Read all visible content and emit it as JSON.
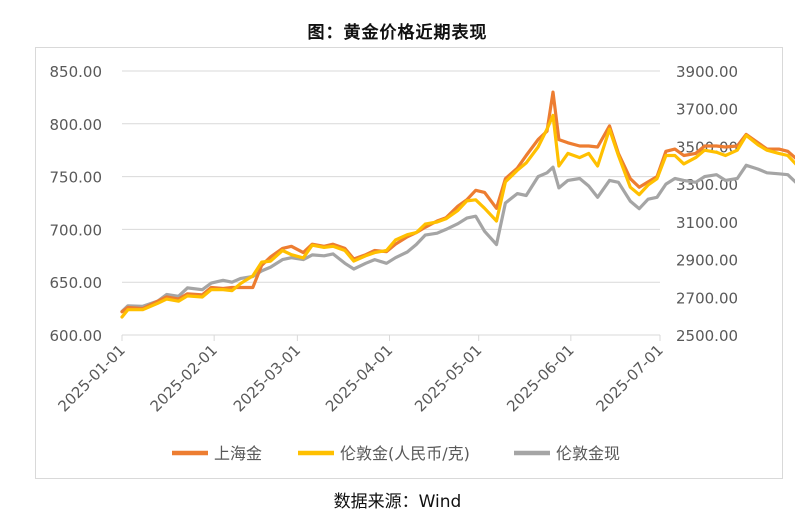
{
  "title": "图：黄金价格近期表现",
  "source": "数据来源：Wind",
  "colors": {
    "shanghai": "#ED7D31",
    "london_rmb": "#FFC000",
    "london_spot": "#A5A5A5",
    "grid": "#D9D9D9",
    "tick_text": "#595959"
  },
  "chart_data": {
    "type": "line",
    "grid": true,
    "legend_position": "bottom",
    "x_ticks": [
      "2025-01-01",
      "2025-02-01",
      "2025-03-01",
      "2025-04-01",
      "2025-05-01",
      "2025-06-01",
      "2025-07-01"
    ],
    "y_left": {
      "range": [
        600,
        850
      ],
      "ticks": [
        "600.00",
        "650.00",
        "700.00",
        "750.00",
        "800.00",
        "850.00"
      ]
    },
    "y_right": {
      "range": [
        2500,
        3900
      ],
      "ticks": [
        "2500.00",
        "2700.00",
        "2900.00",
        "3100.00",
        "3300.00",
        "3500.00",
        "3700.00",
        "3900.00"
      ]
    },
    "series": [
      {
        "name": "上海金",
        "axis": "left",
        "color_key": "shanghai",
        "points": [
          [
            "2025-01-01",
            622
          ],
          [
            "2025-01-03",
            626
          ],
          [
            "2025-01-08",
            625
          ],
          [
            "2025-01-13",
            632
          ],
          [
            "2025-01-16",
            636
          ],
          [
            "2025-01-20",
            634
          ],
          [
            "2025-01-23",
            639
          ],
          [
            "2025-01-28",
            638
          ],
          [
            "2025-01-31",
            645
          ],
          [
            "2025-02-04",
            644
          ],
          [
            "2025-02-07",
            645
          ],
          [
            "2025-02-10",
            645
          ],
          [
            "2025-02-14",
            645
          ],
          [
            "2025-02-17",
            666
          ],
          [
            "2025-02-20",
            674
          ],
          [
            "2025-02-24",
            682
          ],
          [
            "2025-02-27",
            684
          ],
          [
            "2025-03-03",
            678
          ],
          [
            "2025-03-06",
            686
          ],
          [
            "2025-03-10",
            684
          ],
          [
            "2025-03-13",
            686
          ],
          [
            "2025-03-17",
            682
          ],
          [
            "2025-03-20",
            672
          ],
          [
            "2025-03-24",
            676
          ],
          [
            "2025-03-27",
            680
          ],
          [
            "2025-03-31",
            679
          ],
          [
            "2025-04-03",
            686
          ],
          [
            "2025-04-07",
            693
          ],
          [
            "2025-04-10",
            697
          ],
          [
            "2025-04-13",
            702
          ],
          [
            "2025-04-17",
            708
          ],
          [
            "2025-04-20",
            711
          ],
          [
            "2025-04-24",
            722
          ],
          [
            "2025-04-27",
            728
          ],
          [
            "2025-04-30",
            737
          ],
          [
            "2025-05-03",
            735
          ],
          [
            "2025-05-07",
            720
          ],
          [
            "2025-05-10",
            748
          ],
          [
            "2025-05-14",
            758
          ],
          [
            "2025-05-17",
            770
          ],
          [
            "2025-05-21",
            785
          ],
          [
            "2025-05-24",
            793
          ],
          [
            "2025-05-26",
            830
          ],
          [
            "2025-05-28",
            785
          ],
          [
            "2025-05-31",
            782
          ],
          [
            "2025-06-04",
            779
          ],
          [
            "2025-06-07",
            779
          ],
          [
            "2025-06-10",
            778
          ],
          [
            "2025-06-14",
            798
          ],
          [
            "2025-06-17",
            772
          ],
          [
            "2025-06-21",
            748
          ],
          [
            "2025-06-24",
            740
          ],
          [
            "2025-06-27",
            745
          ],
          [
            "2025-06-30",
            750
          ],
          [
            "2025-07-03",
            774
          ],
          [
            "2025-07-06",
            776
          ],
          [
            "2025-07-09",
            770
          ],
          [
            "2025-07-13",
            772
          ],
          [
            "2025-07-16",
            779
          ],
          [
            "2025-07-20",
            779
          ],
          [
            "2025-07-23",
            778
          ],
          [
            "2025-07-27",
            779
          ],
          [
            "2025-07-30",
            790
          ],
          [
            "2025-08-03",
            782
          ],
          [
            "2025-08-06",
            776
          ],
          [
            "2025-08-10",
            776
          ],
          [
            "2025-08-13",
            774
          ],
          [
            "2025-08-17",
            764
          ],
          [
            "2025-08-20",
            764
          ],
          [
            "2025-08-23",
            772
          ],
          [
            "2025-08-25",
            771
          ]
        ]
      },
      {
        "name": "伦敦金(人民币/克)",
        "axis": "left",
        "color_key": "london_rmb",
        "points": [
          [
            "2025-01-01",
            617
          ],
          [
            "2025-01-03",
            624
          ],
          [
            "2025-01-08",
            624
          ],
          [
            "2025-01-13",
            630
          ],
          [
            "2025-01-16",
            634
          ],
          [
            "2025-01-20",
            632
          ],
          [
            "2025-01-23",
            637
          ],
          [
            "2025-01-28",
            636
          ],
          [
            "2025-01-31",
            643
          ],
          [
            "2025-02-04",
            643
          ],
          [
            "2025-02-07",
            642
          ],
          [
            "2025-02-10",
            649
          ],
          [
            "2025-02-14",
            656
          ],
          [
            "2025-02-17",
            669
          ],
          [
            "2025-02-20",
            670
          ],
          [
            "2025-02-24",
            680
          ],
          [
            "2025-02-27",
            676
          ],
          [
            "2025-03-03",
            673
          ],
          [
            "2025-03-06",
            685
          ],
          [
            "2025-03-10",
            683
          ],
          [
            "2025-03-13",
            684
          ],
          [
            "2025-03-17",
            680
          ],
          [
            "2025-03-20",
            670
          ],
          [
            "2025-03-24",
            675
          ],
          [
            "2025-03-27",
            678
          ],
          [
            "2025-03-31",
            680
          ],
          [
            "2025-04-03",
            690
          ],
          [
            "2025-04-07",
            695
          ],
          [
            "2025-04-10",
            697
          ],
          [
            "2025-04-13",
            705
          ],
          [
            "2025-04-17",
            707
          ],
          [
            "2025-04-20",
            710
          ],
          [
            "2025-04-24",
            718
          ],
          [
            "2025-04-27",
            727
          ],
          [
            "2025-04-30",
            728
          ],
          [
            "2025-05-03",
            720
          ],
          [
            "2025-05-07",
            708
          ],
          [
            "2025-05-10",
            745
          ],
          [
            "2025-05-14",
            756
          ],
          [
            "2025-05-17",
            763
          ],
          [
            "2025-05-21",
            778
          ],
          [
            "2025-05-24",
            795
          ],
          [
            "2025-05-26",
            808
          ],
          [
            "2025-05-28",
            760
          ],
          [
            "2025-05-31",
            772
          ],
          [
            "2025-06-04",
            768
          ],
          [
            "2025-06-07",
            772
          ],
          [
            "2025-06-10",
            760
          ],
          [
            "2025-06-14",
            795
          ],
          [
            "2025-06-17",
            770
          ],
          [
            "2025-06-21",
            740
          ],
          [
            "2025-06-24",
            733
          ],
          [
            "2025-06-27",
            742
          ],
          [
            "2025-06-30",
            748
          ],
          [
            "2025-07-03",
            770
          ],
          [
            "2025-07-06",
            770
          ],
          [
            "2025-07-09",
            762
          ],
          [
            "2025-07-13",
            768
          ],
          [
            "2025-07-16",
            775
          ],
          [
            "2025-07-20",
            773
          ],
          [
            "2025-07-23",
            770
          ],
          [
            "2025-07-27",
            775
          ],
          [
            "2025-07-30",
            789
          ],
          [
            "2025-08-03",
            780
          ],
          [
            "2025-08-06",
            775
          ],
          [
            "2025-08-10",
            772
          ],
          [
            "2025-08-13",
            770
          ],
          [
            "2025-08-17",
            758
          ],
          [
            "2025-08-20",
            762
          ],
          [
            "2025-08-23",
            764
          ],
          [
            "2025-08-25",
            769
          ]
        ]
      },
      {
        "name": "伦敦金现",
        "axis": "right",
        "color_key": "london_spot",
        "points": [
          [
            "2025-01-01",
            2625
          ],
          [
            "2025-01-03",
            2655
          ],
          [
            "2025-01-08",
            2652
          ],
          [
            "2025-01-13",
            2680
          ],
          [
            "2025-01-16",
            2715
          ],
          [
            "2025-01-20",
            2705
          ],
          [
            "2025-01-23",
            2750
          ],
          [
            "2025-01-28",
            2740
          ],
          [
            "2025-01-31",
            2775
          ],
          [
            "2025-02-04",
            2790
          ],
          [
            "2025-02-07",
            2780
          ],
          [
            "2025-02-10",
            2800
          ],
          [
            "2025-02-14",
            2810
          ],
          [
            "2025-02-17",
            2840
          ],
          [
            "2025-02-20",
            2860
          ],
          [
            "2025-02-24",
            2900
          ],
          [
            "2025-02-27",
            2910
          ],
          [
            "2025-03-03",
            2900
          ],
          [
            "2025-03-06",
            2925
          ],
          [
            "2025-03-10",
            2920
          ],
          [
            "2025-03-13",
            2930
          ],
          [
            "2025-03-17",
            2880
          ],
          [
            "2025-03-20",
            2850
          ],
          [
            "2025-03-24",
            2880
          ],
          [
            "2025-03-27",
            2900
          ],
          [
            "2025-03-31",
            2880
          ],
          [
            "2025-04-03",
            2910
          ],
          [
            "2025-04-07",
            2940
          ],
          [
            "2025-04-10",
            2980
          ],
          [
            "2025-04-13",
            3030
          ],
          [
            "2025-04-17",
            3040
          ],
          [
            "2025-04-20",
            3060
          ],
          [
            "2025-04-24",
            3090
          ],
          [
            "2025-04-27",
            3120
          ],
          [
            "2025-04-30",
            3130
          ],
          [
            "2025-05-03",
            3050
          ],
          [
            "2025-05-07",
            2980
          ],
          [
            "2025-05-10",
            3200
          ],
          [
            "2025-05-14",
            3250
          ],
          [
            "2025-05-17",
            3240
          ],
          [
            "2025-05-21",
            3340
          ],
          [
            "2025-05-24",
            3360
          ],
          [
            "2025-05-26",
            3390
          ],
          [
            "2025-05-28",
            3280
          ],
          [
            "2025-05-31",
            3320
          ],
          [
            "2025-06-04",
            3330
          ],
          [
            "2025-06-07",
            3290
          ],
          [
            "2025-06-10",
            3230
          ],
          [
            "2025-06-14",
            3320
          ],
          [
            "2025-06-17",
            3310
          ],
          [
            "2025-06-21",
            3210
          ],
          [
            "2025-06-24",
            3170
          ],
          [
            "2025-06-27",
            3220
          ],
          [
            "2025-06-30",
            3230
          ],
          [
            "2025-07-03",
            3300
          ],
          [
            "2025-07-06",
            3330
          ],
          [
            "2025-07-09",
            3320
          ],
          [
            "2025-07-13",
            3310
          ],
          [
            "2025-07-16",
            3340
          ],
          [
            "2025-07-20",
            3350
          ],
          [
            "2025-07-23",
            3320
          ],
          [
            "2025-07-27",
            3330
          ],
          [
            "2025-07-30",
            3400
          ],
          [
            "2025-08-03",
            3380
          ],
          [
            "2025-08-06",
            3360
          ],
          [
            "2025-08-10",
            3355
          ],
          [
            "2025-08-13",
            3350
          ],
          [
            "2025-08-17",
            3290
          ],
          [
            "2025-08-20",
            3300
          ],
          [
            "2025-08-23",
            3320
          ],
          [
            "2025-08-25",
            3330
          ]
        ]
      }
    ]
  }
}
